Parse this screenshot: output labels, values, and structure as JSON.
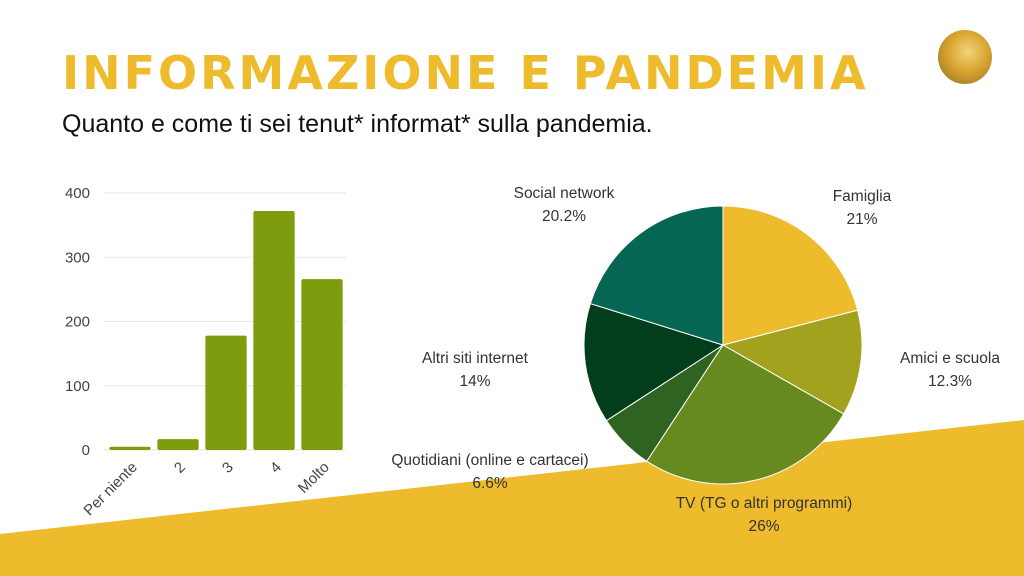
{
  "header": {
    "title": "INFORMAZIONE E PANDEMIA",
    "subtitle": "Quanto e come ti sei tenut* informat* sulla pandemia."
  },
  "colors": {
    "accent": "#EDBB2B",
    "bar": "#7D9D0E",
    "grid": "#e6e6e6"
  },
  "chart_data": [
    {
      "type": "bar",
      "categories": [
        "Per niente",
        "2",
        "3",
        "4",
        "Molto"
      ],
      "values": [
        5,
        17,
        178,
        372,
        266
      ],
      "ylim": [
        0,
        400
      ],
      "yticks": [
        0,
        100,
        200,
        300,
        400
      ],
      "grid": true
    },
    {
      "type": "pie",
      "slices": [
        {
          "label": "Famiglia",
          "value": 21,
          "display": "21%",
          "color": "#EDBB2B"
        },
        {
          "label": "Amici e scuola",
          "value": 12.3,
          "display": "12.3%",
          "color": "#A3A21F"
        },
        {
          "label": "TV (TG o altri programmi)",
          "value": 26,
          "display": "26%",
          "color": "#678A1F"
        },
        {
          "label": "Quotidiani (online e cartacei)",
          "value": 6.6,
          "display": "6.6%",
          "color": "#2E6322"
        },
        {
          "label": "Altri siti internet",
          "value": 14,
          "display": "14%",
          "color": "#023D1C"
        },
        {
          "label": "Social network",
          "value": 20.2,
          "display": "20.2%",
          "color": "#056653"
        }
      ]
    }
  ]
}
